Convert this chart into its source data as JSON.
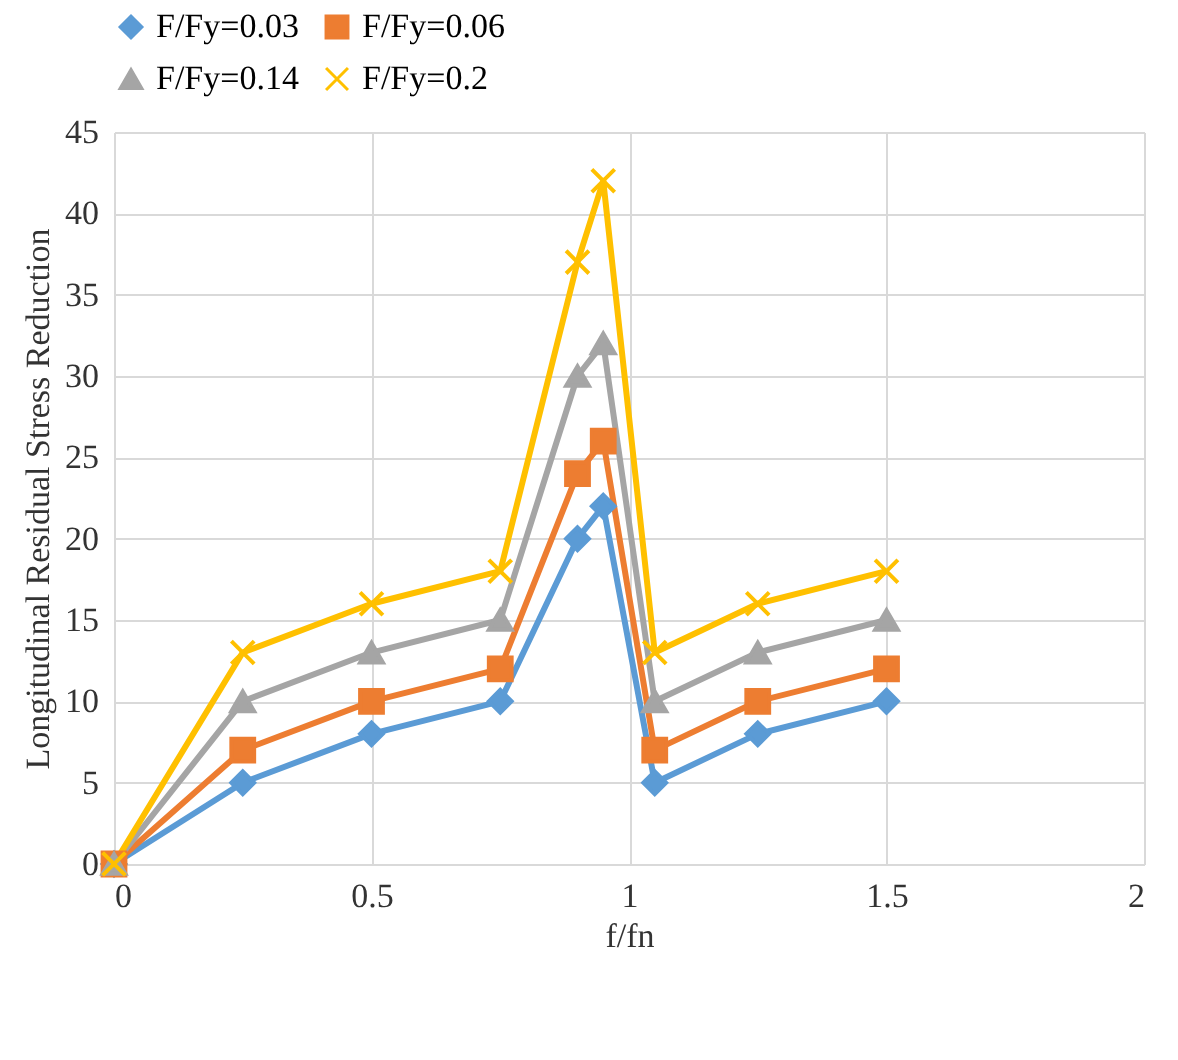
{
  "chart_data": {
    "type": "line",
    "xlabel": "f/fn",
    "ylabel": "Longitudinal  Residual Stress Reduction",
    "x": [
      0,
      0.25,
      0.5,
      0.75,
      0.9,
      0.95,
      1.05,
      1.25,
      1.5
    ],
    "series": [
      {
        "name": "F/Fy=0.03",
        "color": "#5b9bd5",
        "marker": "diamond",
        "values": [
          0,
          5,
          8,
          10,
          20,
          22,
          5,
          8,
          10
        ]
      },
      {
        "name": "F/Fy=0.06",
        "color": "#ed7d31",
        "marker": "square",
        "values": [
          0,
          7,
          10,
          12,
          24,
          26,
          7,
          10,
          12
        ]
      },
      {
        "name": "F/Fy=0.14",
        "color": "#a5a5a5",
        "marker": "triangle",
        "values": [
          0,
          10,
          13,
          15,
          30,
          32,
          10,
          13,
          15
        ]
      },
      {
        "name": "F/Fy=0.2",
        "color": "#ffc000",
        "marker": "cross",
        "values": [
          0,
          13,
          16,
          18,
          37,
          42,
          13,
          16,
          18
        ]
      }
    ],
    "xlim": [
      0,
      2
    ],
    "xticks": [
      0,
      0.5,
      1,
      1.5,
      2
    ],
    "ylim": [
      0,
      45
    ],
    "yticks": [
      0,
      5,
      10,
      15,
      20,
      25,
      30,
      35,
      40,
      45
    ],
    "grid": true,
    "legend": "top"
  }
}
